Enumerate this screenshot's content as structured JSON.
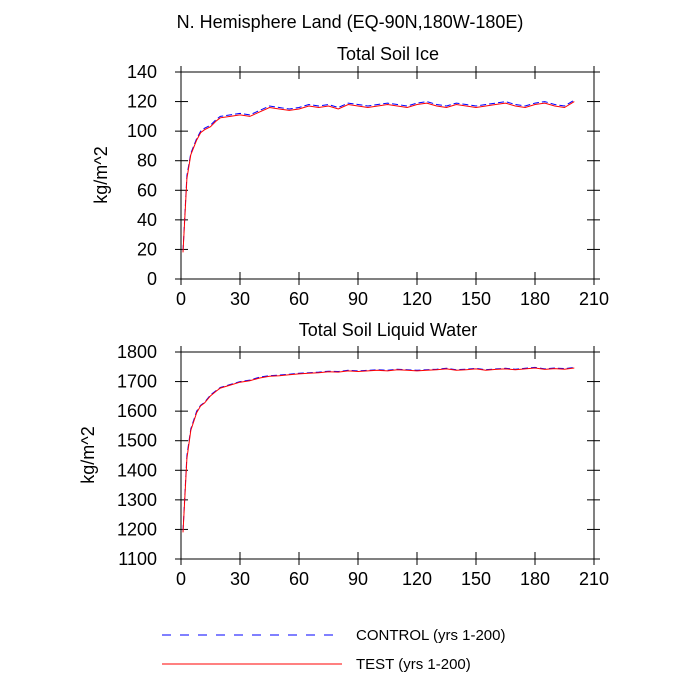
{
  "page_title": "N. Hemisphere Land (EQ-90N,180W-180E)",
  "legend": [
    {
      "label": "CONTROL (yrs 1-200)",
      "color": "#0000ff",
      "dash": true
    },
    {
      "label": "TEST (yrs 1-200)",
      "color": "#ff0000",
      "dash": false
    }
  ],
  "chart_data": [
    {
      "type": "line",
      "title": "Total Soil Ice",
      "xlabel": "",
      "ylabel": "kg/m^2",
      "xlim": [
        0,
        210
      ],
      "ylim": [
        0,
        140
      ],
      "xticks": [
        0,
        30,
        60,
        90,
        120,
        150,
        180,
        210
      ],
      "xtick_labels": [
        "0",
        "30",
        "60",
        "90",
        "120",
        "150",
        "180",
        "210"
      ],
      "yticks": [
        0,
        20,
        40,
        60,
        80,
        100,
        120,
        140
      ],
      "ytick_labels": [
        "0",
        "20",
        "40",
        "60",
        "80",
        "100",
        "120",
        "140"
      ],
      "series": [
        {
          "name": "CONTROL (yrs 1-200)",
          "color": "#0000ff",
          "x": [
            1,
            3,
            5,
            8,
            10,
            12,
            15,
            18,
            20,
            25,
            30,
            35,
            40,
            45,
            50,
            55,
            60,
            65,
            70,
            75,
            80,
            85,
            90,
            95,
            100,
            105,
            110,
            115,
            120,
            125,
            130,
            135,
            140,
            145,
            150,
            155,
            160,
            165,
            170,
            175,
            180,
            185,
            190,
            195,
            200
          ],
          "y": [
            19,
            70,
            85,
            95,
            100,
            102,
            104,
            108,
            110,
            111,
            112,
            111,
            114,
            117,
            116,
            115,
            116,
            118,
            117,
            118,
            116,
            119,
            118,
            117,
            118,
            119,
            118,
            117,
            119,
            120,
            118,
            117,
            119,
            118,
            117,
            118,
            119,
            120,
            118,
            117,
            119,
            120,
            118,
            117,
            121
          ]
        },
        {
          "name": "TEST (yrs 1-200)",
          "color": "#ff0000",
          "x": [
            1,
            3,
            5,
            8,
            10,
            12,
            15,
            18,
            20,
            25,
            30,
            35,
            40,
            45,
            50,
            55,
            60,
            65,
            70,
            75,
            80,
            85,
            90,
            95,
            100,
            105,
            110,
            115,
            120,
            125,
            130,
            135,
            140,
            145,
            150,
            155,
            160,
            165,
            170,
            175,
            180,
            185,
            190,
            195,
            200
          ],
          "y": [
            18,
            68,
            84,
            94,
            99,
            101,
            103,
            107,
            109,
            110,
            111,
            110,
            113,
            116,
            115,
            114,
            115,
            117,
            116,
            117,
            115,
            118,
            117,
            116,
            117,
            118,
            117,
            116,
            118,
            119,
            117,
            116,
            118,
            117,
            116,
            117,
            118,
            119,
            117,
            116,
            118,
            119,
            117,
            116,
            120
          ]
        }
      ]
    },
    {
      "type": "line",
      "title": "Total Soil Liquid Water",
      "xlabel": "",
      "ylabel": "kg/m^2",
      "xlim": [
        0,
        210
      ],
      "ylim": [
        1100,
        1800
      ],
      "xticks": [
        0,
        30,
        60,
        90,
        120,
        150,
        180,
        210
      ],
      "xtick_labels": [
        "0",
        "30",
        "60",
        "90",
        "120",
        "150",
        "180",
        "210"
      ],
      "yticks": [
        1100,
        1200,
        1300,
        1400,
        1500,
        1600,
        1700,
        1800
      ],
      "ytick_labels": [
        "1100",
        "1200",
        "1300",
        "1400",
        "1500",
        "1600",
        "1700",
        "1800"
      ],
      "series": [
        {
          "name": "CONTROL (yrs 1-200)",
          "color": "#0000ff",
          "x": [
            1,
            3,
            5,
            8,
            10,
            12,
            15,
            18,
            20,
            25,
            30,
            35,
            40,
            45,
            50,
            55,
            60,
            65,
            70,
            75,
            80,
            85,
            90,
            95,
            100,
            105,
            110,
            115,
            120,
            125,
            130,
            135,
            140,
            145,
            150,
            155,
            160,
            165,
            170,
            175,
            180,
            185,
            190,
            195,
            200
          ],
          "y": [
            1195,
            1450,
            1540,
            1600,
            1620,
            1630,
            1655,
            1670,
            1680,
            1690,
            1700,
            1705,
            1715,
            1720,
            1722,
            1725,
            1728,
            1730,
            1732,
            1735,
            1734,
            1738,
            1736,
            1738,
            1740,
            1738,
            1742,
            1740,
            1738,
            1740,
            1742,
            1745,
            1740,
            1742,
            1745,
            1740,
            1743,
            1745,
            1742,
            1745,
            1748,
            1743,
            1746,
            1744,
            1748
          ]
        },
        {
          "name": "TEST (yrs 1-200)",
          "color": "#ff0000",
          "x": [
            1,
            3,
            5,
            8,
            10,
            12,
            15,
            18,
            20,
            25,
            30,
            35,
            40,
            45,
            50,
            55,
            60,
            65,
            70,
            75,
            80,
            85,
            90,
            95,
            100,
            105,
            110,
            115,
            120,
            125,
            130,
            135,
            140,
            145,
            150,
            155,
            160,
            165,
            170,
            175,
            180,
            185,
            190,
            195,
            200
          ],
          "y": [
            1190,
            1440,
            1535,
            1595,
            1618,
            1628,
            1652,
            1668,
            1678,
            1688,
            1698,
            1703,
            1712,
            1718,
            1720,
            1723,
            1726,
            1728,
            1730,
            1733,
            1732,
            1736,
            1734,
            1736,
            1738,
            1736,
            1740,
            1738,
            1736,
            1738,
            1740,
            1743,
            1738,
            1740,
            1743,
            1738,
            1741,
            1743,
            1740,
            1743,
            1746,
            1741,
            1744,
            1742,
            1746
          ]
        }
      ]
    }
  ]
}
